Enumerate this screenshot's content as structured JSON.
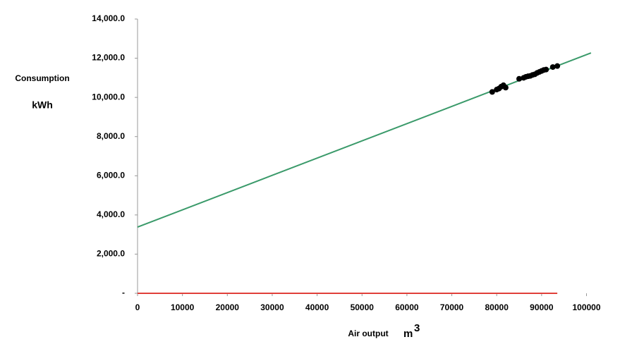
{
  "chart_data": {
    "type": "scatter",
    "y_label": [
      "Consumption",
      "kWh"
    ],
    "x_label": "Air output",
    "x_unit": "m",
    "x_unit_exponent": "3",
    "xlim": [
      0,
      101000
    ],
    "ylim": [
      0,
      14000
    ],
    "xticks": [
      0,
      10000,
      20000,
      30000,
      40000,
      50000,
      60000,
      70000,
      80000,
      90000,
      100000
    ],
    "yticks": [
      {
        "value": 0,
        "label": "-"
      },
      {
        "value": 2000,
        "label": "2,000.0"
      },
      {
        "value": 4000,
        "label": "4,000.0"
      },
      {
        "value": 6000,
        "label": "6,000.0"
      },
      {
        "value": 8000,
        "label": "8,000.0"
      },
      {
        "value": 10000,
        "label": "10,000.0"
      },
      {
        "value": 12000,
        "label": "12,000.0"
      },
      {
        "value": 14000,
        "label": "14,000.0"
      }
    ],
    "series": [
      {
        "kind": "line",
        "color": "#e0403a",
        "x": [
          0,
          93500
        ],
        "values": [
          0,
          0
        ]
      },
      {
        "kind": "line",
        "color": "#3a9a6a",
        "x": [
          0,
          101000
        ],
        "values": [
          3380,
          12270
        ]
      },
      {
        "kind": "points",
        "color": "#000000",
        "x": [
          79000,
          80000,
          80500,
          81000,
          81500,
          82000,
          85000,
          86000,
          86500,
          87000,
          87500,
          88000,
          88500,
          89000,
          89500,
          90000,
          90500,
          91000,
          92500,
          93500
        ],
        "values": [
          10280,
          10400,
          10450,
          10550,
          10620,
          10500,
          10950,
          11000,
          11050,
          11080,
          11100,
          11150,
          11180,
          11250,
          11300,
          11350,
          11400,
          11420,
          11550,
          11600
        ]
      }
    ]
  }
}
